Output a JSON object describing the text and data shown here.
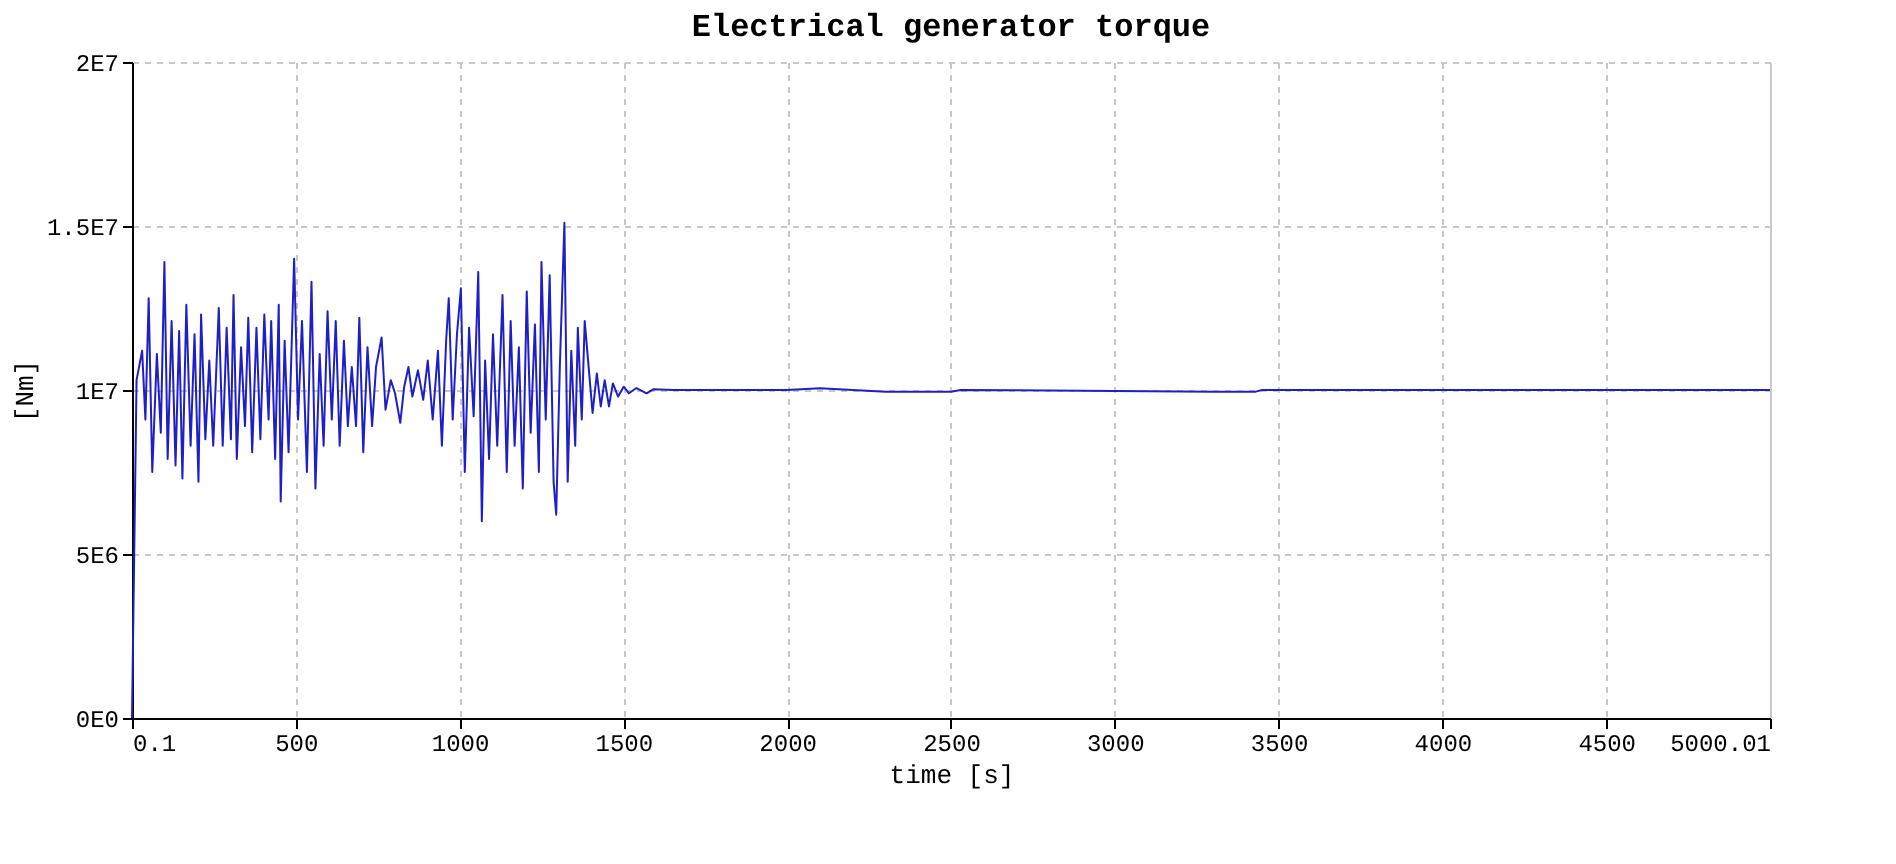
{
  "chart_data": {
    "type": "line",
    "title": "Electrical generator torque",
    "xlabel": "time [s]",
    "ylabel": "[Nm]",
    "x": [
      0.1,
      14,
      31,
      41,
      51,
      62,
      76,
      88,
      99,
      109,
      121,
      133,
      144,
      154,
      166,
      179,
      191,
      203,
      211,
      224,
      236,
      248,
      265,
      277,
      289,
      302,
      310,
      320,
      333,
      345,
      355,
      367,
      380,
      392,
      404,
      417,
      425,
      437,
      448,
      454,
      466,
      478,
      495,
      507,
      519,
      534,
      548,
      560,
      573,
      585,
      597,
      610,
      622,
      634,
      647,
      659,
      671,
      684,
      694,
      706,
      719,
      733,
      745,
      762,
      774,
      790,
      803,
      819,
      831,
      844,
      856,
      873,
      889,
      903,
      918,
      934,
      946,
      959,
      967,
      979,
      992,
      1004,
      1016,
      1029,
      1043,
      1057,
      1068,
      1078,
      1090,
      1102,
      1115,
      1131,
      1144,
      1156,
      1168,
      1181,
      1193,
      1205,
      1217,
      1230,
      1242,
      1250,
      1263,
      1275,
      1287,
      1295,
      1306,
      1320,
      1330,
      1341,
      1353,
      1361,
      1373,
      1382,
      1394,
      1406,
      1419,
      1431,
      1443,
      1456,
      1468,
      1484,
      1501,
      1517,
      1540,
      1571,
      1591,
      1653,
      2000,
      2100,
      2300,
      2500,
      2530,
      3300,
      3430,
      3450,
      5000.01
    ],
    "series": [
      {
        "color": "#1f1fc8",
        "values": [
          0,
          10300000,
          11200000,
          9100000,
          12800000,
          7500000,
          11100000,
          8700000,
          13900000,
          7900000,
          12100000,
          7700000,
          11800000,
          7300000,
          12600000,
          8300000,
          11700000,
          7200000,
          12300000,
          8500000,
          10900000,
          8300000,
          12500000,
          8300000,
          11900000,
          8500000,
          12900000,
          7900000,
          11300000,
          8900000,
          12200000,
          8100000,
          11900000,
          8500000,
          12300000,
          9100000,
          12100000,
          7900000,
          12600000,
          6600000,
          11500000,
          8100000,
          14000000,
          9100000,
          12100000,
          7500000,
          13300000,
          7000000,
          11100000,
          8300000,
          12400000,
          9100000,
          12100000,
          8300000,
          11500000,
          8900000,
          10700000,
          8900000,
          12200000,
          8100000,
          11300000,
          8900000,
          10700000,
          11600000,
          9400000,
          10300000,
          9900000,
          9000000,
          10100000,
          10700000,
          9800000,
          10600000,
          9700000,
          10900000,
          9100000,
          11200000,
          8300000,
          11500000,
          12800000,
          9100000,
          11700000,
          13100000,
          7500000,
          11900000,
          9200000,
          13600000,
          6000000,
          10900000,
          7900000,
          11700000,
          8300000,
          12900000,
          7500000,
          12100000,
          8300000,
          11300000,
          7000000,
          13000000,
          8700000,
          12000000,
          7500000,
          13900000,
          9100000,
          13500000,
          7200000,
          6200000,
          10700000,
          15100000,
          7200000,
          11200000,
          8300000,
          11900000,
          9100000,
          12100000,
          10700000,
          9300000,
          10500000,
          9500000,
          10300000,
          9500000,
          10200000,
          9800000,
          10100000,
          9900000,
          10060000,
          9900000,
          10020000,
          10000000,
          10000000,
          10050000,
          9950000,
          9950000,
          10000000,
          9950000,
          9950000,
          10000000,
          10000000
        ]
      }
    ],
    "xlim": [
      0.1,
      5000.01
    ],
    "xticks": [
      0.1,
      500,
      1000,
      1500,
      2000,
      2500,
      3000,
      3500,
      4000,
      4500,
      5000.01
    ],
    "ylim": [
      0,
      20000000
    ],
    "yticks": [
      {
        "value": 0,
        "label": "0E0"
      },
      {
        "value": 5000000,
        "label": "5E6"
      },
      {
        "value": 10000000,
        "label": "1E7"
      },
      {
        "value": 15000000,
        "label": "1.5E7"
      },
      {
        "value": 20000000,
        "label": "2E7"
      }
    ],
    "grid": true,
    "marker": "none",
    "line_style": "solid"
  }
}
